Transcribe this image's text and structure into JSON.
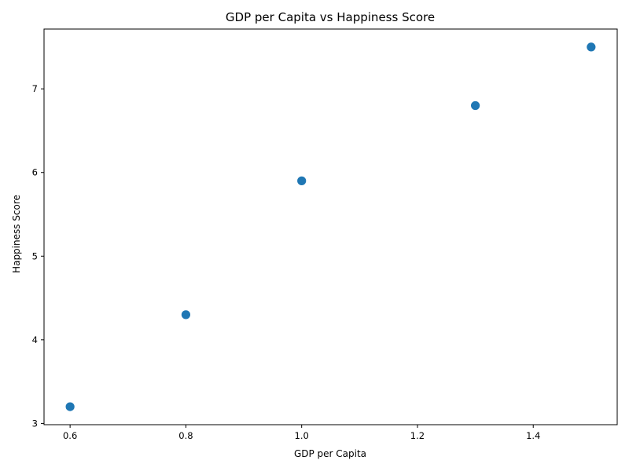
{
  "chart_data": {
    "type": "scatter",
    "title": "GDP per Capita vs Happiness Score",
    "xlabel": "GDP per Capita",
    "ylabel": "Happiness Score",
    "xlim": [
      0.555,
      1.545
    ],
    "ylim": [
      2.985,
      7.715
    ],
    "xticks": [
      "0.6",
      "0.8",
      "1.0",
      "1.2",
      "1.4"
    ],
    "yticks": [
      "3",
      "4",
      "5",
      "6",
      "7"
    ],
    "grid": false,
    "marker_color": "#1f77b4",
    "points": [
      {
        "x": 0.6,
        "y": 3.2
      },
      {
        "x": 0.8,
        "y": 4.3
      },
      {
        "x": 1.0,
        "y": 5.9
      },
      {
        "x": 1.3,
        "y": 6.8
      },
      {
        "x": 1.5,
        "y": 7.5
      }
    ]
  }
}
